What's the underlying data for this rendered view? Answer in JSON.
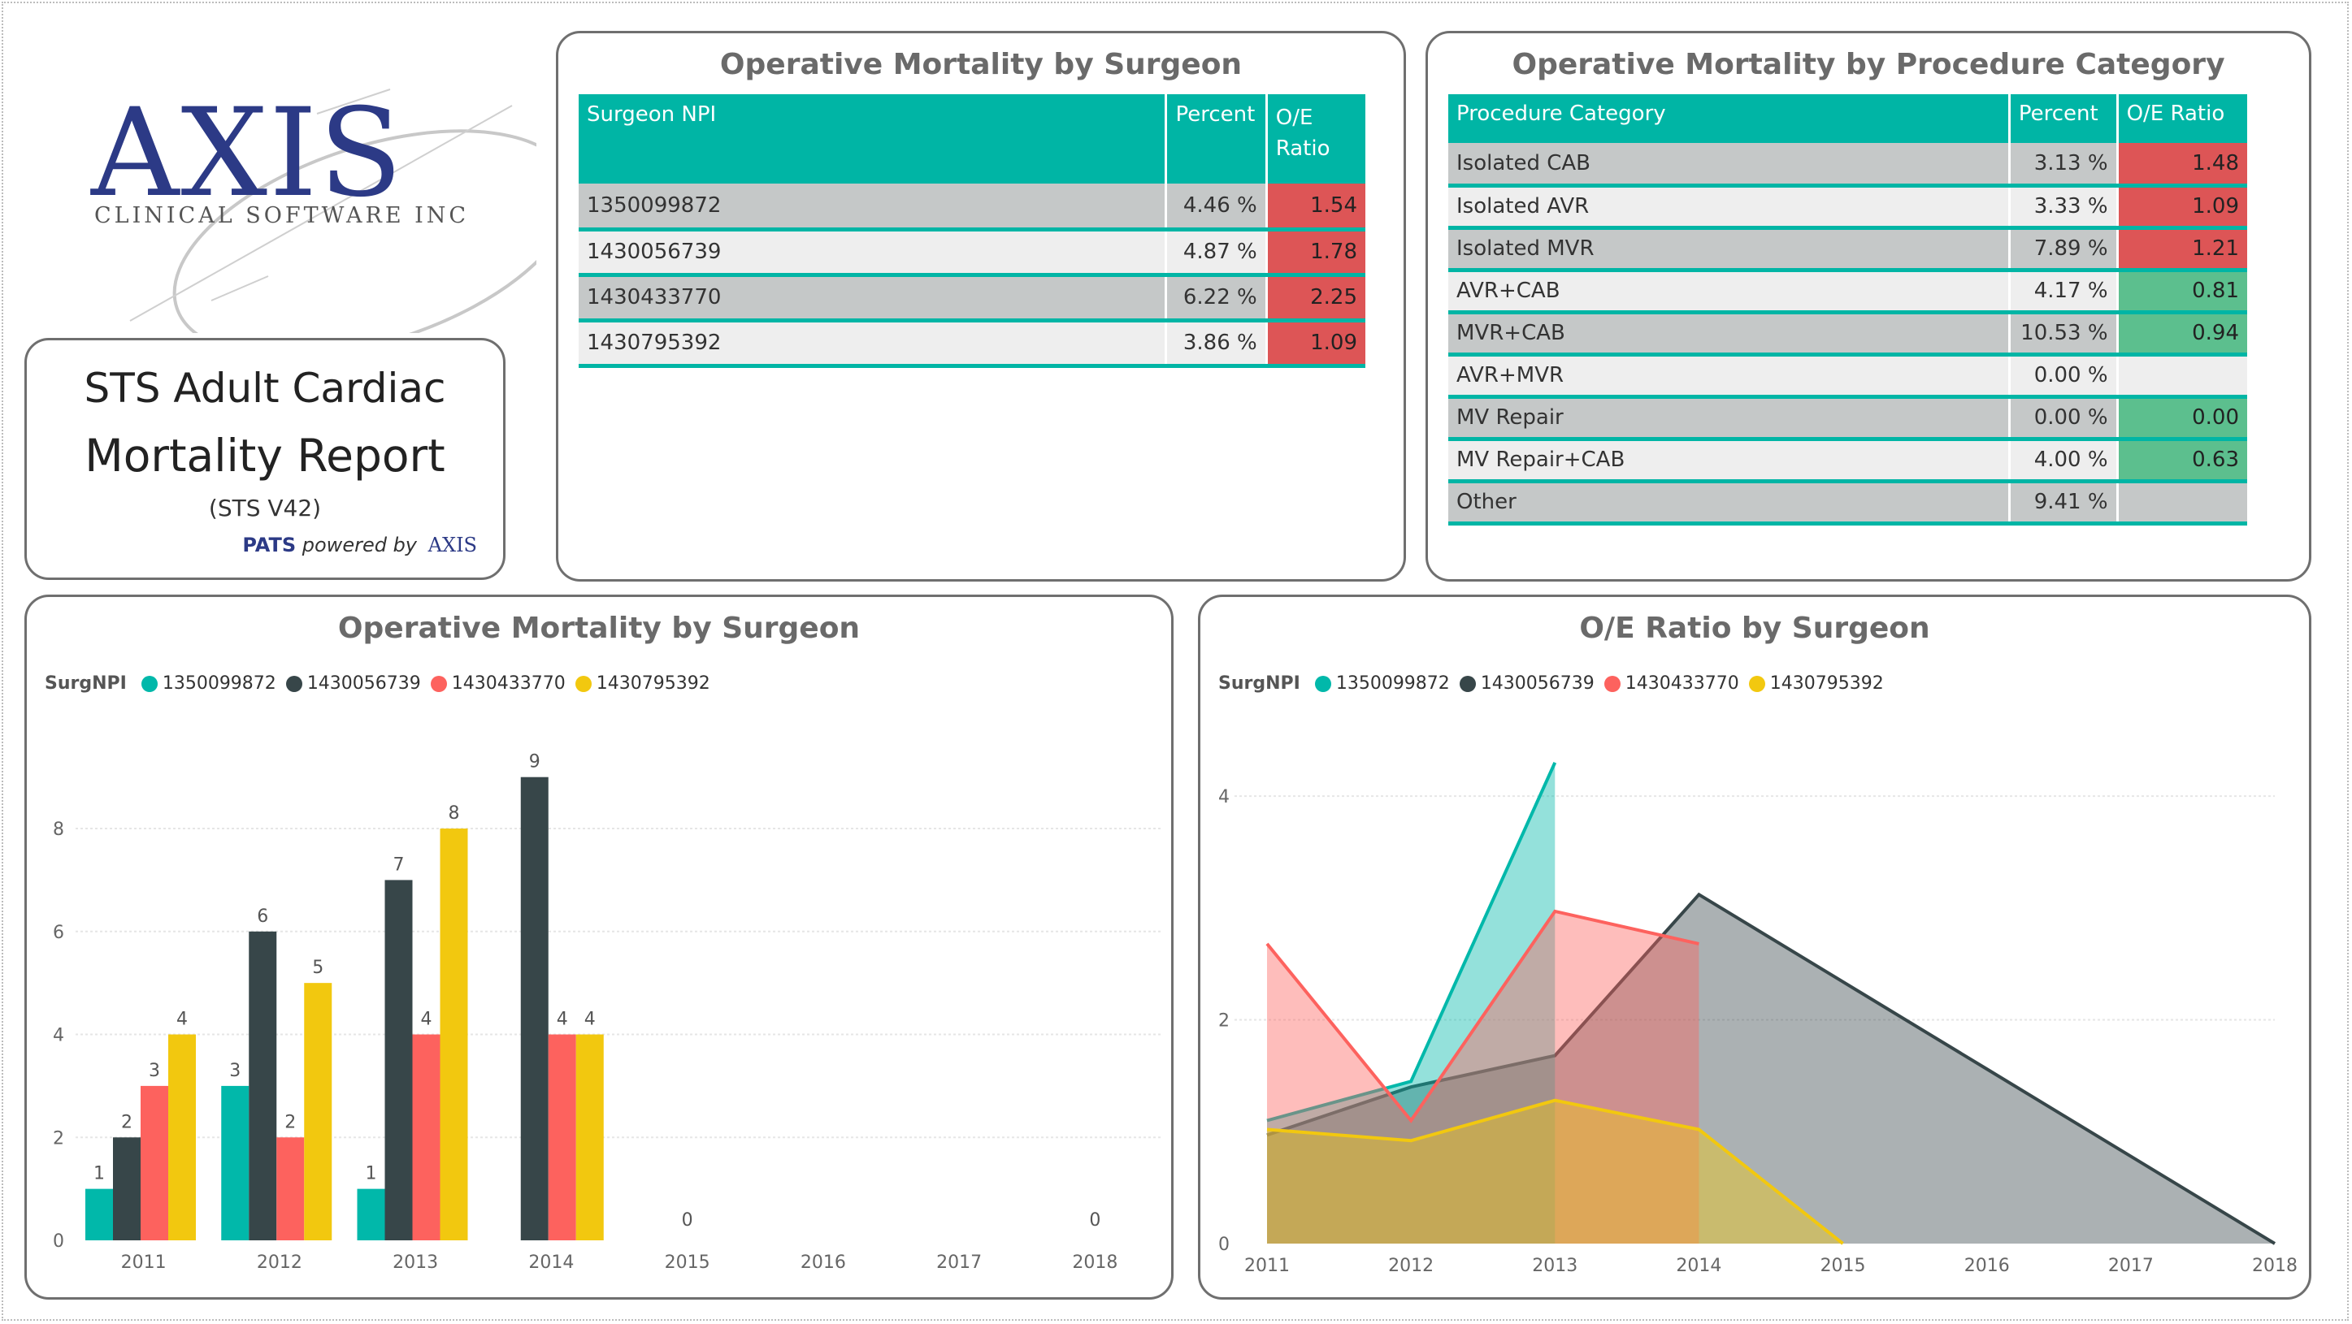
{
  "logo": {
    "main": "AXIS",
    "sub": "CLINICAL SOFTWARE INC"
  },
  "title_card": {
    "line1": "STS Adult Cardiac",
    "line2": "Mortality Report",
    "version": "(STS V42)",
    "powered_brand": "PATS",
    "powered_text": "powered by",
    "powered_logo": "AXIS"
  },
  "surgeon_table": {
    "title": "Operative Mortality by Surgeon",
    "headers": [
      "Surgeon NPI",
      "Percent",
      "O/E Ratio"
    ],
    "rows": [
      {
        "npi": "1350099872",
        "percent": "4.46 %",
        "oe": "1.54",
        "oe_flag": "red"
      },
      {
        "npi": "1430056739",
        "percent": "4.87 %",
        "oe": "1.78",
        "oe_flag": "red"
      },
      {
        "npi": "1430433770",
        "percent": "6.22 %",
        "oe": "2.25",
        "oe_flag": "red"
      },
      {
        "npi": "1430795392",
        "percent": "3.86 %",
        "oe": "1.09",
        "oe_flag": "red"
      }
    ]
  },
  "procedure_table": {
    "title": "Operative Mortality by Procedure Category",
    "headers": [
      "Procedure Category",
      "Percent",
      "O/E Ratio"
    ],
    "rows": [
      {
        "category": "Isolated CAB",
        "percent": "3.13 %",
        "oe": "1.48",
        "oe_flag": "red"
      },
      {
        "category": "Isolated AVR",
        "percent": "3.33 %",
        "oe": "1.09",
        "oe_flag": "red"
      },
      {
        "category": "Isolated MVR",
        "percent": "7.89 %",
        "oe": "1.21",
        "oe_flag": "red"
      },
      {
        "category": "AVR+CAB",
        "percent": "4.17 %",
        "oe": "0.81",
        "oe_flag": "green"
      },
      {
        "category": "MVR+CAB",
        "percent": "10.53 %",
        "oe": "0.94",
        "oe_flag": "green"
      },
      {
        "category": "AVR+MVR",
        "percent": "0.00 %",
        "oe": "",
        "oe_flag": "none"
      },
      {
        "category": "MV Repair",
        "percent": "0.00 %",
        "oe": "0.00",
        "oe_flag": "green"
      },
      {
        "category": "MV Repair+CAB",
        "percent": "4.00 %",
        "oe": "0.63",
        "oe_flag": "green"
      },
      {
        "category": "Other",
        "percent": "9.41 %",
        "oe": "",
        "oe_flag": "none"
      }
    ]
  },
  "colors": {
    "teal": "#01b8aa",
    "dark": "#374649",
    "red": "#fd625e",
    "yellow": "#f2c80f",
    "header": "#00b5a5"
  },
  "chart_data": [
    {
      "type": "bar",
      "title": "Operative Mortality by Surgeon",
      "legend_title": "SurgNPI",
      "categories": [
        "2011",
        "2012",
        "2013",
        "2014",
        "2015",
        "2016",
        "2017",
        "2018"
      ],
      "series": [
        {
          "name": "1350099872",
          "color": "#01b8aa",
          "values": [
            1,
            3,
            1,
            null,
            null,
            null,
            null,
            null
          ]
        },
        {
          "name": "1430056739",
          "color": "#374649",
          "values": [
            2,
            6,
            7,
            9,
            null,
            null,
            null,
            null
          ]
        },
        {
          "name": "1430433770",
          "color": "#fd625e",
          "values": [
            3,
            2,
            4,
            4,
            null,
            null,
            null,
            null
          ]
        },
        {
          "name": "1430795392",
          "color": "#f2c80f",
          "values": [
            4,
            5,
            8,
            4,
            null,
            null,
            null,
            null
          ]
        }
      ],
      "zero_labels": [
        {
          "category": "2015",
          "label": "0"
        },
        {
          "category": "2018",
          "label": "0"
        }
      ],
      "yticks": [
        0,
        2,
        4,
        6,
        8
      ],
      "ylim": [
        0,
        9.5
      ]
    },
    {
      "type": "area",
      "title": "O/E Ratio by Surgeon",
      "legend_title": "SurgNPI",
      "x": [
        "2011",
        "2012",
        "2013",
        "2014",
        "2015",
        "2016",
        "2017",
        "2018"
      ],
      "series": [
        {
          "name": "1350099872",
          "color": "#01b8aa",
          "values": [
            1.1,
            1.45,
            4.3,
            null,
            null,
            null,
            null,
            null
          ]
        },
        {
          "name": "1430056739",
          "color": "#374649",
          "values": [
            0.97,
            1.4,
            1.68,
            3.12,
            2.34,
            1.56,
            0.78,
            0
          ]
        },
        {
          "name": "1430433770",
          "color": "#fd625e",
          "values": [
            2.68,
            1.1,
            2.97,
            2.68,
            null,
            null,
            null,
            null
          ]
        },
        {
          "name": "1430795392",
          "color": "#f2c80f",
          "values": [
            1.02,
            0.92,
            1.28,
            1.02,
            0,
            null,
            null,
            null
          ]
        }
      ],
      "yticks": [
        0,
        2,
        4
      ],
      "ylim": [
        0,
        4.4
      ]
    }
  ]
}
